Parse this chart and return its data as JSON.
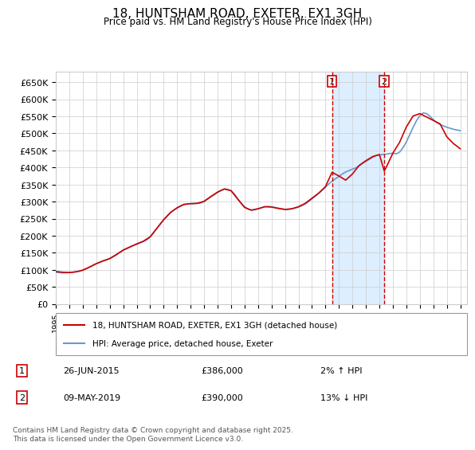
{
  "title": "18, HUNTSHAM ROAD, EXETER, EX1 3GH",
  "subtitle": "Price paid vs. HM Land Registry's House Price Index (HPI)",
  "xlabel": "",
  "ylabel": "",
  "yticks": [
    0,
    50000,
    100000,
    150000,
    200000,
    250000,
    300000,
    350000,
    400000,
    450000,
    500000,
    550000,
    600000,
    650000
  ],
  "ytick_labels": [
    "£0",
    "£50K",
    "£100K",
    "£150K",
    "£200K",
    "£250K",
    "£300K",
    "£350K",
    "£400K",
    "£450K",
    "£500K",
    "£550K",
    "£600K",
    "£650K"
  ],
  "ylim": [
    0,
    680000
  ],
  "xlim_start": 1995.0,
  "xlim_end": 2025.5,
  "sale1_date": "26-JUN-2015",
  "sale1_price": "£386,000",
  "sale1_hpi": "2% ↑ HPI",
  "sale1_year": 2015.49,
  "sale2_date": "09-MAY-2019",
  "sale2_price": "£390,000",
  "sale2_hpi": "13% ↓ HPI",
  "sale2_year": 2019.36,
  "legend_line1": "18, HUNTSHAM ROAD, EXETER, EX1 3GH (detached house)",
  "legend_line2": "HPI: Average price, detached house, Exeter",
  "copyright": "Contains HM Land Registry data © Crown copyright and database right 2025.\nThis data is licensed under the Open Government Licence v3.0.",
  "red_color": "#cc0000",
  "blue_color": "#6699cc",
  "shade_color": "#ddeeff",
  "background_color": "#ffffff",
  "hpi_years": [
    1995.0,
    1995.25,
    1995.5,
    1995.75,
    1996.0,
    1996.25,
    1996.5,
    1996.75,
    1997.0,
    1997.25,
    1997.5,
    1997.75,
    1998.0,
    1998.25,
    1998.5,
    1998.75,
    1999.0,
    1999.25,
    1999.5,
    1999.75,
    2000.0,
    2000.25,
    2000.5,
    2000.75,
    2001.0,
    2001.25,
    2001.5,
    2001.75,
    2002.0,
    2002.25,
    2002.5,
    2002.75,
    2003.0,
    2003.25,
    2003.5,
    2003.75,
    2004.0,
    2004.25,
    2004.5,
    2004.75,
    2005.0,
    2005.25,
    2005.5,
    2005.75,
    2006.0,
    2006.25,
    2006.5,
    2006.75,
    2007.0,
    2007.25,
    2007.5,
    2007.75,
    2008.0,
    2008.25,
    2008.5,
    2008.75,
    2009.0,
    2009.25,
    2009.5,
    2009.75,
    2010.0,
    2010.25,
    2010.5,
    2010.75,
    2011.0,
    2011.25,
    2011.5,
    2011.75,
    2012.0,
    2012.25,
    2012.5,
    2012.75,
    2013.0,
    2013.25,
    2013.5,
    2013.75,
    2014.0,
    2014.25,
    2014.5,
    2014.75,
    2015.0,
    2015.25,
    2015.5,
    2015.75,
    2016.0,
    2016.25,
    2016.5,
    2016.75,
    2017.0,
    2017.25,
    2017.5,
    2017.75,
    2018.0,
    2018.25,
    2018.5,
    2018.75,
    2019.0,
    2019.25,
    2019.5,
    2019.75,
    2020.0,
    2020.25,
    2020.5,
    2020.75,
    2021.0,
    2021.25,
    2021.5,
    2021.75,
    2022.0,
    2022.25,
    2022.5,
    2022.75,
    2023.0,
    2023.25,
    2023.5,
    2023.75,
    2024.0,
    2024.25,
    2024.5,
    2024.75,
    2025.0
  ],
  "hpi_values": [
    93000,
    92000,
    91000,
    91500,
    92000,
    93000,
    94500,
    96000,
    99000,
    103000,
    108000,
    113000,
    118000,
    122000,
    126000,
    129000,
    133000,
    138000,
    144000,
    151000,
    157000,
    162000,
    167000,
    171000,
    175000,
    179000,
    183000,
    188000,
    196000,
    208000,
    221000,
    234000,
    246000,
    257000,
    267000,
    275000,
    281000,
    287000,
    291000,
    293000,
    294000,
    294000,
    295000,
    296000,
    300000,
    307000,
    314000,
    320000,
    327000,
    333000,
    337000,
    336000,
    332000,
    322000,
    308000,
    295000,
    285000,
    278000,
    275000,
    276000,
    279000,
    282000,
    285000,
    286000,
    285000,
    283000,
    281000,
    279000,
    277000,
    277000,
    279000,
    281000,
    284000,
    288000,
    293000,
    300000,
    308000,
    316000,
    324000,
    333000,
    342000,
    352000,
    360000,
    367000,
    374000,
    381000,
    387000,
    391000,
    395000,
    399000,
    405000,
    412000,
    418000,
    424000,
    430000,
    435000,
    437000,
    438000,
    439000,
    441000,
    442000,
    440000,
    445000,
    458000,
    475000,
    496000,
    518000,
    537000,
    552000,
    560000,
    558000,
    550000,
    540000,
    532000,
    526000,
    522000,
    518000,
    515000,
    512000,
    510000,
    508000
  ],
  "red_years": [
    1995.0,
    1995.5,
    1996.0,
    1996.5,
    1997.0,
    1997.5,
    1998.0,
    1998.5,
    1999.0,
    1999.5,
    2000.0,
    2000.5,
    2001.0,
    2001.5,
    2002.0,
    2002.5,
    2003.0,
    2003.5,
    2004.0,
    2004.5,
    2005.0,
    2005.5,
    2006.0,
    2006.5,
    2007.0,
    2007.5,
    2008.0,
    2008.5,
    2009.0,
    2009.5,
    2010.0,
    2010.5,
    2011.0,
    2011.5,
    2012.0,
    2012.5,
    2013.0,
    2013.5,
    2014.0,
    2014.5,
    2015.0,
    2015.49,
    2016.0,
    2016.5,
    2017.0,
    2017.5,
    2018.0,
    2018.5,
    2019.0,
    2019.36,
    2019.5,
    2020.0,
    2020.5,
    2021.0,
    2021.5,
    2022.0,
    2022.5,
    2023.0,
    2023.5,
    2024.0,
    2024.5,
    2025.0
  ],
  "red_values": [
    95000,
    93000,
    92000,
    94000,
    99000,
    108000,
    118000,
    126000,
    133000,
    145000,
    158000,
    167000,
    176000,
    184000,
    197000,
    222000,
    247000,
    268000,
    282000,
    292000,
    294000,
    295000,
    301000,
    315000,
    328000,
    337000,
    332000,
    307000,
    283000,
    275000,
    279000,
    285000,
    284000,
    280000,
    277000,
    279000,
    285000,
    295000,
    310000,
    325000,
    344000,
    386000,
    375000,
    363000,
    381000,
    406000,
    420000,
    432000,
    438000,
    390000,
    400000,
    442000,
    474000,
    519000,
    551000,
    558000,
    548000,
    538000,
    528000,
    490000,
    470000,
    455000
  ]
}
